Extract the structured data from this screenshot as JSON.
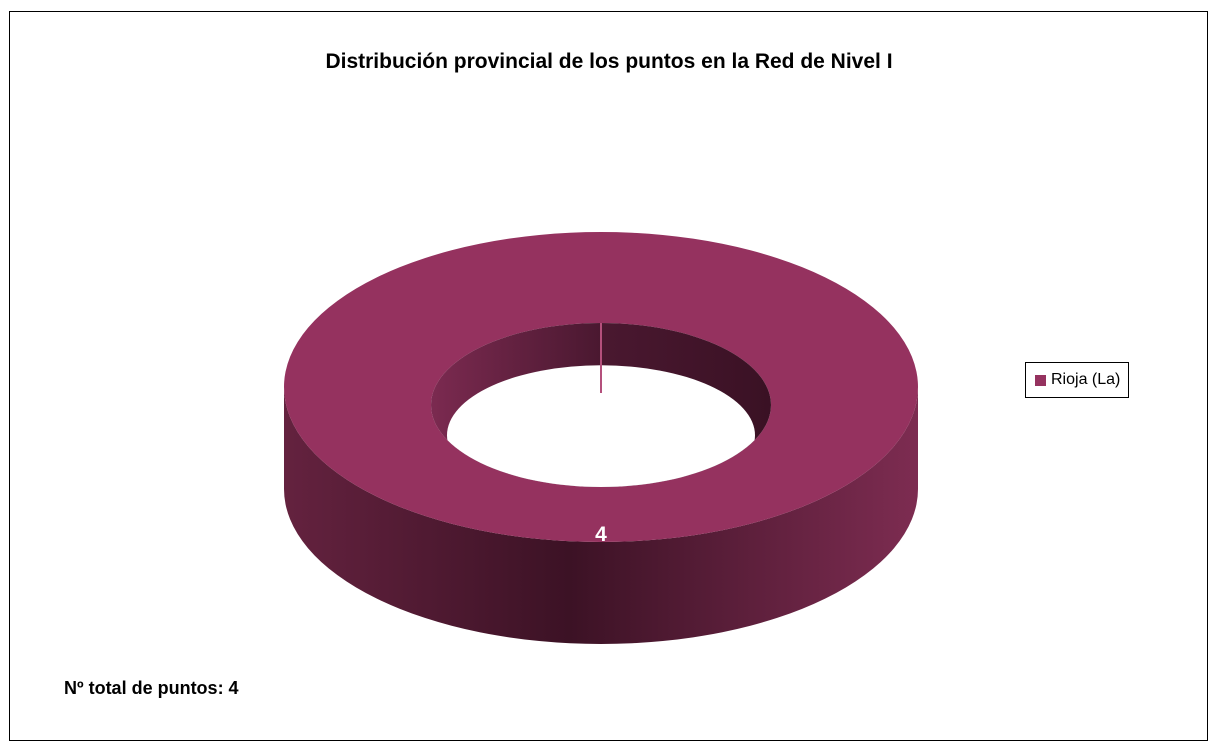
{
  "chart_data": {
    "type": "pie",
    "variant": "donut-3d",
    "title": "Distribución provincial de los puntos en la Red de Nivel I",
    "categories": [
      "Rioja (La)"
    ],
    "values": [
      4
    ],
    "data_labels": [
      "4"
    ],
    "colors": [
      "#95325f"
    ],
    "legend_position": "right"
  },
  "footer": {
    "total_text": "Nº total de puntos: 4"
  }
}
